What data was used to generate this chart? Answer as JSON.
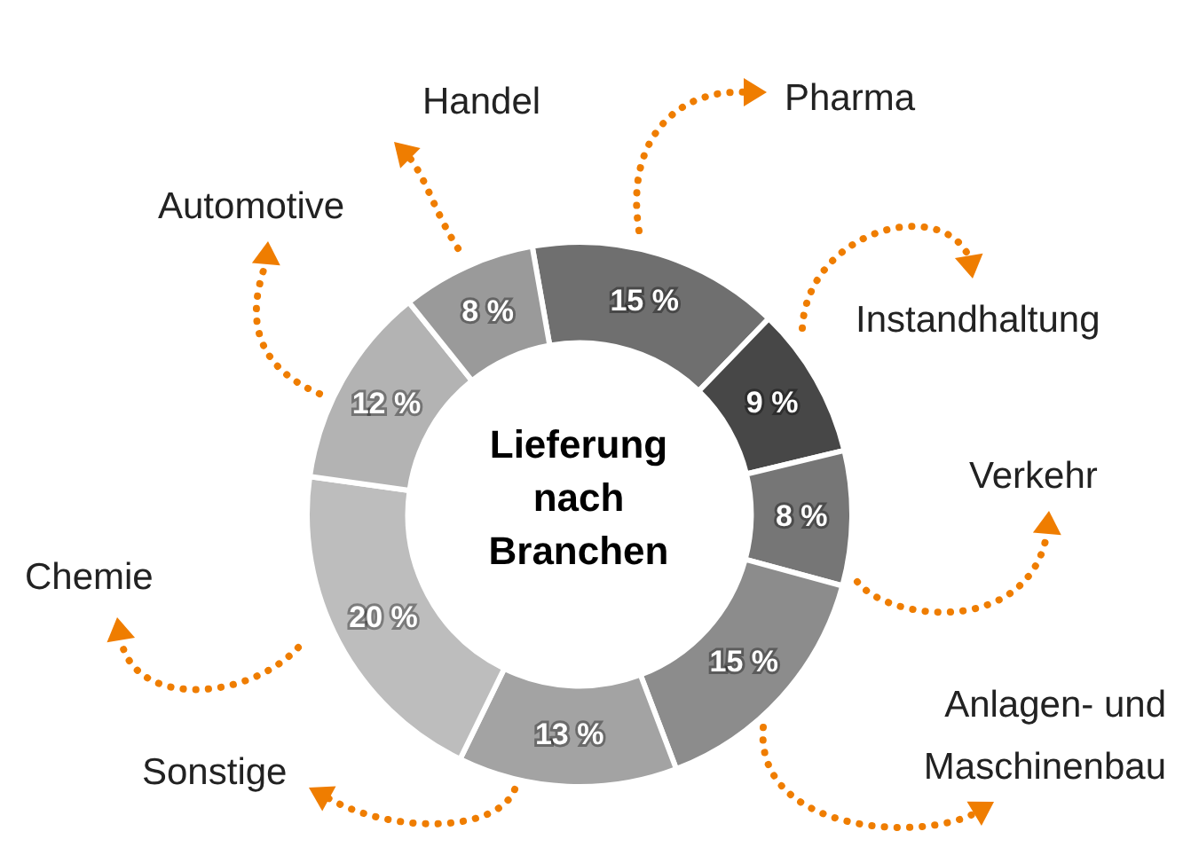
{
  "chart_data": {
    "type": "donut",
    "title": "Lieferung nach Branchen",
    "categories": [
      "Pharma",
      "Instandhaltung",
      "Verkehr",
      "Anlagen- und Maschinenbau",
      "Sonstige",
      "Chemie",
      "Automotive",
      "Handel"
    ],
    "values": [
      15,
      9,
      8,
      15,
      13,
      20,
      12,
      8
    ],
    "value_labels": [
      "15 %",
      "9 %",
      "8 %",
      "15 %",
      "13 %",
      "20 %",
      "12 %",
      "8 %"
    ],
    "colors": [
      "#6f6f6f",
      "#474747",
      "#767676",
      "#8c8c8c",
      "#a3a3a3",
      "#bdbdbd",
      "#b3b3b3",
      "#9a9a9a"
    ],
    "legend": false
  }
}
